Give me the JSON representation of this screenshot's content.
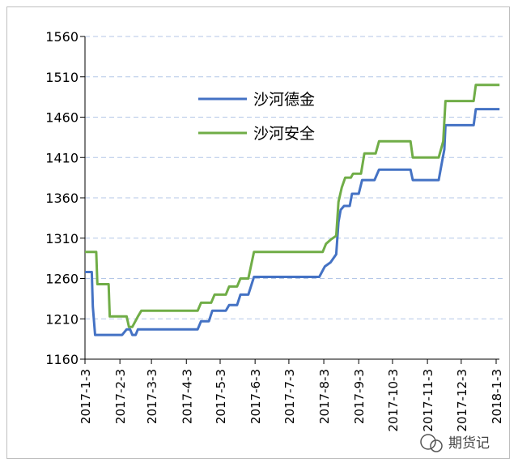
{
  "chart_data": {
    "type": "line",
    "title": "",
    "xlabel": "",
    "ylabel": "",
    "ylim": [
      1160,
      1560
    ],
    "yticks": [
      1160,
      1210,
      1260,
      1310,
      1360,
      1410,
      1460,
      1510,
      1560
    ],
    "xlim": [
      "2017-01-03",
      "2018-01-03"
    ],
    "xticks": [
      "2017-1-3",
      "2017-2-3",
      "2017-3-3",
      "2017-4-3",
      "2017-5-3",
      "2017-6-3",
      "2017-7-3",
      "2017-8-3",
      "2017-9-3",
      "2017-10-3",
      "2017-11-3",
      "2017-12-3",
      "2018-1-3"
    ],
    "grid": "horizontal dashed",
    "legend_position": "upper-center",
    "series": [
      {
        "name": "沙河德金",
        "color": "#4472c4",
        "points": [
          [
            "2017-01-03",
            1268
          ],
          [
            "2017-01-09",
            1268
          ],
          [
            "2017-01-10",
            1225
          ],
          [
            "2017-01-12",
            1190
          ],
          [
            "2017-02-05",
            1190
          ],
          [
            "2017-02-09",
            1197
          ],
          [
            "2017-02-12",
            1197
          ],
          [
            "2017-02-14",
            1190
          ],
          [
            "2017-02-17",
            1190
          ],
          [
            "2017-02-19",
            1197
          ],
          [
            "2017-04-13",
            1197
          ],
          [
            "2017-04-16",
            1207
          ],
          [
            "2017-04-23",
            1207
          ],
          [
            "2017-04-26",
            1220
          ],
          [
            "2017-05-08",
            1220
          ],
          [
            "2017-05-11",
            1227
          ],
          [
            "2017-05-18",
            1227
          ],
          [
            "2017-05-21",
            1240
          ],
          [
            "2017-05-28",
            1240
          ],
          [
            "2017-06-02",
            1262
          ],
          [
            "2017-07-30",
            1262
          ],
          [
            "2017-08-04",
            1275
          ],
          [
            "2017-08-09",
            1280
          ],
          [
            "2017-08-14",
            1290
          ],
          [
            "2017-08-16",
            1330
          ],
          [
            "2017-08-18",
            1345
          ],
          [
            "2017-08-21",
            1350
          ],
          [
            "2017-08-26",
            1350
          ],
          [
            "2017-08-28",
            1365
          ],
          [
            "2017-09-03",
            1365
          ],
          [
            "2017-09-06",
            1382
          ],
          [
            "2017-09-17",
            1382
          ],
          [
            "2017-09-21",
            1395
          ],
          [
            "2017-10-19",
            1395
          ],
          [
            "2017-10-21",
            1382
          ],
          [
            "2017-11-13",
            1382
          ],
          [
            "2017-11-16",
            1405
          ],
          [
            "2017-11-18",
            1420
          ],
          [
            "2017-11-19",
            1450
          ],
          [
            "2017-12-14",
            1450
          ],
          [
            "2017-12-16",
            1470
          ],
          [
            "2018-01-06",
            1470
          ]
        ]
      },
      {
        "name": "沙河安全",
        "color": "#70ad47",
        "points": [
          [
            "2017-01-03",
            1293
          ],
          [
            "2017-01-13",
            1293
          ],
          [
            "2017-01-14",
            1253
          ],
          [
            "2017-01-24",
            1253
          ],
          [
            "2017-01-25",
            1213
          ],
          [
            "2017-02-09",
            1213
          ],
          [
            "2017-02-11",
            1200
          ],
          [
            "2017-02-14",
            1200
          ],
          [
            "2017-02-19",
            1213
          ],
          [
            "2017-02-22",
            1220
          ],
          [
            "2017-04-13",
            1220
          ],
          [
            "2017-04-16",
            1230
          ],
          [
            "2017-04-25",
            1230
          ],
          [
            "2017-04-28",
            1240
          ],
          [
            "2017-05-08",
            1240
          ],
          [
            "2017-05-11",
            1250
          ],
          [
            "2017-05-18",
            1250
          ],
          [
            "2017-05-21",
            1260
          ],
          [
            "2017-05-28",
            1260
          ],
          [
            "2017-06-02",
            1293
          ],
          [
            "2017-08-02",
            1293
          ],
          [
            "2017-08-05",
            1303
          ],
          [
            "2017-08-09",
            1308
          ],
          [
            "2017-08-14",
            1313
          ],
          [
            "2017-08-16",
            1355
          ],
          [
            "2017-08-19",
            1373
          ],
          [
            "2017-08-22",
            1385
          ],
          [
            "2017-08-27",
            1385
          ],
          [
            "2017-08-29",
            1390
          ],
          [
            "2017-09-05",
            1390
          ],
          [
            "2017-09-08",
            1415
          ],
          [
            "2017-09-18",
            1415
          ],
          [
            "2017-09-21",
            1430
          ],
          [
            "2017-10-19",
            1430
          ],
          [
            "2017-10-21",
            1410
          ],
          [
            "2017-11-13",
            1410
          ],
          [
            "2017-11-17",
            1430
          ],
          [
            "2017-11-19",
            1480
          ],
          [
            "2017-12-14",
            1480
          ],
          [
            "2017-12-16",
            1500
          ],
          [
            "2018-01-06",
            1500
          ]
        ]
      }
    ]
  },
  "watermark": {
    "text": "期货记"
  }
}
